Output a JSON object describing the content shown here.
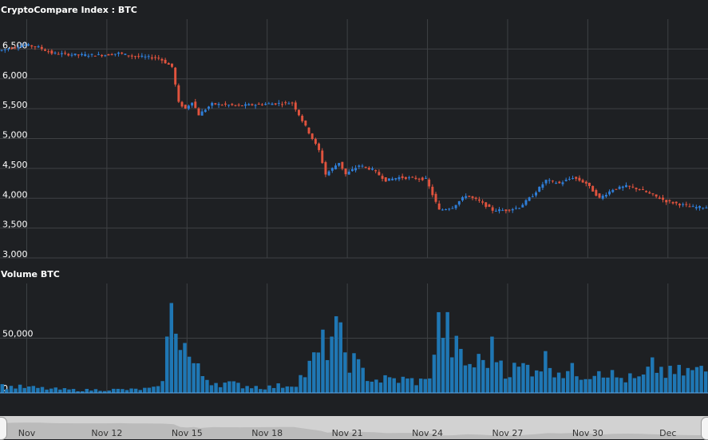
{
  "chart_data": [
    {
      "type": "candlestick",
      "title": "CryptoCompare Index : BTC",
      "ylim": [
        3000,
        7000
      ],
      "yticks": [
        3000,
        3500,
        4000,
        4500,
        5000,
        5500,
        6000,
        6500
      ],
      "ytick_labels": [
        "3,000",
        "3,500",
        "4,000",
        "4,500",
        "5,000",
        "5,500",
        "6,000",
        "6,500"
      ],
      "grid": true,
      "points": [
        {
          "t": "Nov 8",
          "price": 6470
        },
        {
          "t": "Nov 8 12h",
          "price": 6520
        },
        {
          "t": "Nov 9",
          "price": 6570
        },
        {
          "t": "Nov 9 12h",
          "price": 6530
        },
        {
          "t": "Nov 10",
          "price": 6430
        },
        {
          "t": "Nov 11",
          "price": 6400
        },
        {
          "t": "Nov 12",
          "price": 6400
        },
        {
          "t": "Nov 12 12h",
          "price": 6430
        },
        {
          "t": "Nov 13",
          "price": 6380
        },
        {
          "t": "Nov 14",
          "price": 6350
        },
        {
          "t": "Nov 14 12h",
          "price": 6200
        },
        {
          "t": "Nov 14 18h",
          "price": 5600
        },
        {
          "t": "Nov 15",
          "price": 5500
        },
        {
          "t": "Nov 15 6h",
          "price": 5620
        },
        {
          "t": "Nov 15 12h",
          "price": 5400
        },
        {
          "t": "Nov 16",
          "price": 5580
        },
        {
          "t": "Nov 17",
          "price": 5550
        },
        {
          "t": "Nov 18",
          "price": 5580
        },
        {
          "t": "Nov 19",
          "price": 5600
        },
        {
          "t": "Nov 19 12h",
          "price": 5200
        },
        {
          "t": "Nov 20",
          "price": 4800
        },
        {
          "t": "Nov 20 6h",
          "price": 4400
        },
        {
          "t": "Nov 20 18h",
          "price": 4600
        },
        {
          "t": "Nov 21",
          "price": 4400
        },
        {
          "t": "Nov 21 12h",
          "price": 4550
        },
        {
          "t": "Nov 22",
          "price": 4480
        },
        {
          "t": "Nov 22 12h",
          "price": 4300
        },
        {
          "t": "Nov 23",
          "price": 4350
        },
        {
          "t": "Nov 24",
          "price": 4320
        },
        {
          "t": "Nov 24 12h",
          "price": 3800
        },
        {
          "t": "Nov 25",
          "price": 3850
        },
        {
          "t": "Nov 25 12h",
          "price": 4050
        },
        {
          "t": "Nov 26",
          "price": 3950
        },
        {
          "t": "Nov 26 12h",
          "price": 3800
        },
        {
          "t": "Nov 27",
          "price": 3800
        },
        {
          "t": "Nov 27 12h",
          "price": 3850
        },
        {
          "t": "Nov 28",
          "price": 4050
        },
        {
          "t": "Nov 28 12h",
          "price": 4300
        },
        {
          "t": "Nov 29",
          "price": 4250
        },
        {
          "t": "Nov 29 12h",
          "price": 4350
        },
        {
          "t": "Nov 30",
          "price": 4250
        },
        {
          "t": "Nov 30 12h",
          "price": 4000
        },
        {
          "t": "Dec 1",
          "price": 4150
        },
        {
          "t": "Dec 1 12h",
          "price": 4200
        },
        {
          "t": "Dec 2",
          "price": 4150
        },
        {
          "t": "Dec 2 12h",
          "price": 4050
        },
        {
          "t": "Dec 3",
          "price": 3950
        },
        {
          "t": "Dec 3 12h",
          "price": 3900
        },
        {
          "t": "Dec 4",
          "price": 3850
        }
      ]
    },
    {
      "type": "bar",
      "title": "Volume BTC",
      "ylim": [
        0,
        100000
      ],
      "yticks": [
        0,
        50000
      ],
      "ytick_labels": [
        "0",
        "50,000"
      ],
      "grid": true,
      "points": [
        {
          "t": "Nov 8",
          "v": 6000
        },
        {
          "t": "Nov 9",
          "v": 5000
        },
        {
          "t": "Nov 10",
          "v": 3500
        },
        {
          "t": "Nov 11",
          "v": 2500
        },
        {
          "t": "Nov 12",
          "v": 3000
        },
        {
          "t": "Nov 13",
          "v": 3000
        },
        {
          "t": "Nov 14",
          "v": 4500
        },
        {
          "t": "Nov 14 12h",
          "v": 80000
        },
        {
          "t": "Nov 15",
          "v": 35000
        },
        {
          "t": "Nov 15 12h",
          "v": 17000
        },
        {
          "t": "Nov 16",
          "v": 10000
        },
        {
          "t": "Nov 17",
          "v": 7000
        },
        {
          "t": "Nov 18",
          "v": 5000
        },
        {
          "t": "Nov 19",
          "v": 8000
        },
        {
          "t": "Nov 19 12h",
          "v": 20000
        },
        {
          "t": "Nov 20",
          "v": 38000
        },
        {
          "t": "Nov 20 12h",
          "v": 55000
        },
        {
          "t": "Nov 21",
          "v": 35000
        },
        {
          "t": "Nov 21 12h",
          "v": 20000
        },
        {
          "t": "Nov 22",
          "v": 12000
        },
        {
          "t": "Nov 23",
          "v": 12000
        },
        {
          "t": "Nov 24",
          "v": 10000
        },
        {
          "t": "Nov 24 12h",
          "v": 68000
        },
        {
          "t": "Nov 25",
          "v": 40000
        },
        {
          "t": "Nov 25 12h",
          "v": 25000
        },
        {
          "t": "Nov 26",
          "v": 28000
        },
        {
          "t": "Nov 26 12h",
          "v": 40000
        },
        {
          "t": "Nov 27",
          "v": 20000
        },
        {
          "t": "Nov 28",
          "v": 25000
        },
        {
          "t": "Nov 28 12h",
          "v": 30000
        },
        {
          "t": "Nov 29",
          "v": 20000
        },
        {
          "t": "Nov 30",
          "v": 18000
        },
        {
          "t": "Nov 30 12h",
          "v": 25000
        },
        {
          "t": "Dec 1",
          "v": 14000
        },
        {
          "t": "Dec 2",
          "v": 12000
        },
        {
          "t": "Dec 2 12h",
          "v": 25000
        },
        {
          "t": "Dec 3",
          "v": 17000
        },
        {
          "t": "Dec 4",
          "v": 20000
        }
      ]
    }
  ],
  "xaxis": {
    "tick_labels": [
      "Nov",
      "Nov 12",
      "Nov 15",
      "Nov 18",
      "Nov 21",
      "Nov 24",
      "Nov 27",
      "Nov 30",
      "Dec"
    ],
    "tick_dates": [
      "Nov 9",
      "Nov 12",
      "Nov 15",
      "Nov 18",
      "Nov 21",
      "Nov 24",
      "Nov 27",
      "Nov 30",
      "Dec 3"
    ]
  },
  "colors": {
    "background": "#1e2023",
    "grid": "#3e4144",
    "up": "#2f7ed8",
    "down": "#e0533e",
    "volume": "#1f77b4",
    "text": "#ffffff",
    "navigator": "#d2d2d2",
    "navigator_series": "#a8a8a8"
  }
}
